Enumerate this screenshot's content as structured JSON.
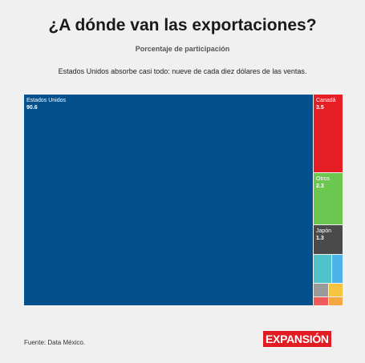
{
  "header": {
    "title": "¿A dónde van las exportaciones?",
    "subtitle": "Porcentaje de participación",
    "description": "Estados Unidos absorbe casi todo: nueve de cada diez dólares de las ventas."
  },
  "footer": {
    "source": "Fuente: Data México.",
    "brand": "EXPANSIÓN"
  },
  "colors": {
    "estados_unidos": "#03508c",
    "canada": "#e61e25",
    "otros": "#6cc751",
    "japon": "#4a4a4a",
    "teal": "#4fc3c9",
    "lightblue": "#4db3ea",
    "grey": "#9a9a9a",
    "yellow": "#f5c542",
    "red_small": "#f05a5a",
    "orange": "#f5a742",
    "brand": "#e31b23"
  },
  "chart_data": {
    "type": "treemap",
    "title": "¿A dónde van las exportaciones?",
    "subtitle": "Porcentaje de participación",
    "series": [
      {
        "name": "Estados Unidos",
        "value": 90.6,
        "label": "Estados Unidos",
        "display_value": "90.6",
        "color_key": "estados_unidos"
      },
      {
        "name": "Canadá",
        "value": 3.5,
        "label": "Canadá",
        "display_value": "3.5",
        "color_key": "canada"
      },
      {
        "name": "Otros",
        "value": 2.3,
        "label": "Otros",
        "display_value": "2.3",
        "color_key": "otros"
      },
      {
        "name": "Japón",
        "value": 1.3,
        "label": "Japón",
        "display_value": "1.3",
        "color_key": "japon"
      },
      {
        "name": "",
        "value": 0.8,
        "color_key": "teal"
      },
      {
        "name": "",
        "value": 0.5,
        "color_key": "lightblue"
      },
      {
        "name": "",
        "value": 0.3,
        "color_key": "grey"
      },
      {
        "name": "",
        "value": 0.3,
        "color_key": "yellow"
      },
      {
        "name": "",
        "value": 0.2,
        "color_key": "red_small"
      },
      {
        "name": "",
        "value": 0.2,
        "color_key": "orange"
      }
    ]
  }
}
